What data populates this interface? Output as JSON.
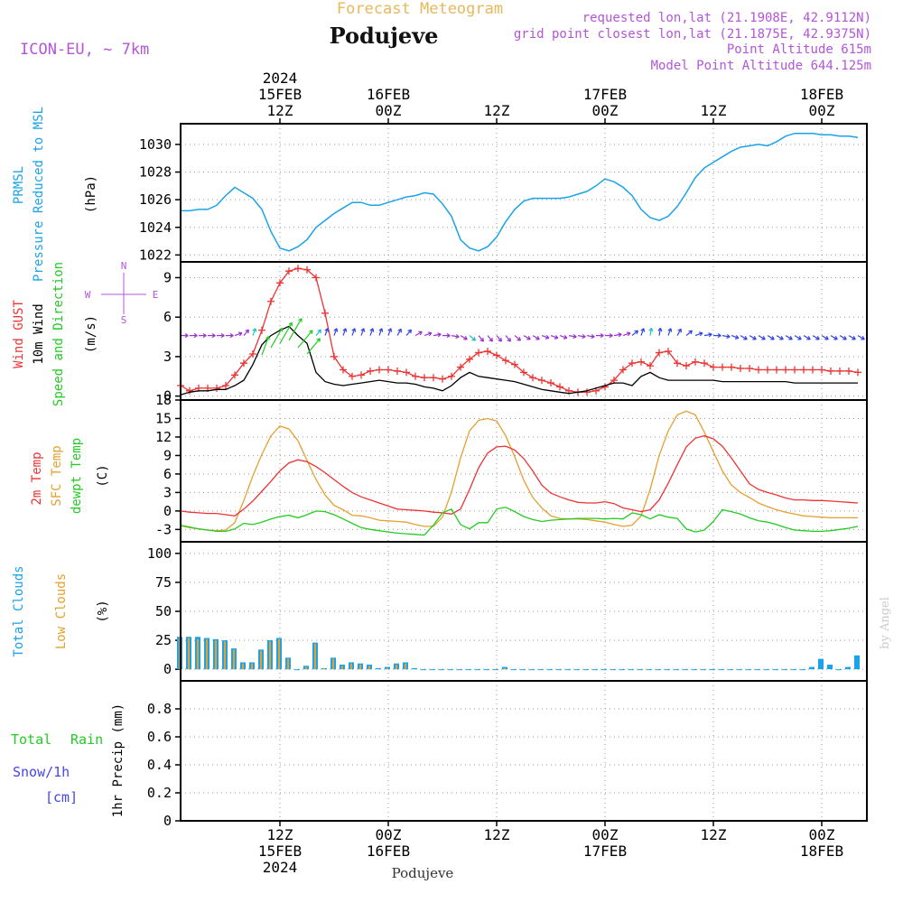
{
  "header": {
    "title": "Forecast Meteogram",
    "location": "Podujeve",
    "model": "ICON-EU, ~ 7km",
    "requested": "requested lon,lat (21.1908E, 42.9112N)",
    "grid_point": "grid point closest lon,lat (21.1875E, 42.9375N)",
    "point_altitude": "Point Altitude 615m",
    "model_altitude": "Model Point Altitude 644.125m",
    "credit": "by Angel",
    "footer_location": "Podujeve"
  },
  "time_axis": {
    "top": [
      {
        "t": 12,
        "lines": [
          "2024",
          "15FEB",
          "12Z"
        ]
      },
      {
        "t": 24,
        "lines": [
          "16FEB",
          "00Z"
        ]
      },
      {
        "t": 36,
        "lines": [
          "12Z"
        ]
      },
      {
        "t": 48,
        "lines": [
          "17FEB",
          "00Z"
        ]
      },
      {
        "t": 60,
        "lines": [
          "12Z"
        ]
      },
      {
        "t": 72,
        "lines": [
          "18FEB",
          "00Z"
        ]
      }
    ],
    "bottom": [
      {
        "t": 12,
        "lines": [
          "12Z",
          "15FEB",
          "2024"
        ]
      },
      {
        "t": 24,
        "lines": [
          "00Z",
          "16FEB"
        ]
      },
      {
        "t": 36,
        "lines": [
          "12Z"
        ]
      },
      {
        "t": 48,
        "lines": [
          "00Z",
          "17FEB"
        ]
      },
      {
        "t": 60,
        "lines": [
          "12Z"
        ]
      },
      {
        "t": 72,
        "lines": [
          "00Z",
          "18FEB"
        ]
      }
    ]
  },
  "colors": {
    "pressure": "#1aa3e8",
    "gust": "#ee3333",
    "wind": "#000000",
    "temp2m": "#ee3333",
    "sfc": "#e5a030",
    "dewpt": "#22cc22",
    "total_clouds": "#1aa3e8",
    "low_clouds": "#e5a030",
    "rain": "#22cc22",
    "snow": "#4444ee",
    "header_purple": "#b455d8",
    "title_orange": "#e8b85a"
  },
  "chart_data": [
    {
      "type": "line",
      "name": "pressure",
      "labels": [
        "PRMSL",
        "Pressure Reduced to MSL"
      ],
      "unit": "(hPa)",
      "yticks": [
        "1022",
        "1024",
        "1026",
        "1028",
        "1030"
      ],
      "ylim": [
        1021.5,
        1031.5
      ],
      "t_range": [
        1,
        77
      ],
      "x": [
        1,
        2,
        3,
        4,
        5,
        6,
        7,
        8,
        9,
        10,
        11,
        12,
        13,
        14,
        15,
        16,
        17,
        18,
        19,
        20,
        21,
        22,
        23,
        24,
        25,
        26,
        27,
        28,
        29,
        30,
        31,
        32,
        33,
        34,
        35,
        36,
        37,
        38,
        39,
        40,
        41,
        42,
        43,
        44,
        45,
        46,
        47,
        48,
        49,
        50,
        51,
        52,
        53,
        54,
        55,
        56,
        57,
        58,
        59,
        60,
        61,
        62,
        63,
        64,
        65,
        66,
        67,
        68,
        69,
        70,
        71,
        72,
        73,
        74,
        75,
        76
      ],
      "values": [
        1025.2,
        1025.2,
        1025.3,
        1025.3,
        1025.6,
        1026.3,
        1026.9,
        1026.5,
        1026.1,
        1025.3,
        1023.7,
        1022.5,
        1022.3,
        1022.6,
        1023.1,
        1024.0,
        1024.5,
        1025.0,
        1025.4,
        1025.8,
        1025.8,
        1025.6,
        1025.6,
        1025.8,
        1026.0,
        1026.2,
        1026.3,
        1026.5,
        1026.4,
        1025.7,
        1024.8,
        1023.1,
        1022.5,
        1022.3,
        1022.6,
        1023.3,
        1024.4,
        1025.3,
        1025.9,
        1026.1,
        1026.1,
        1026.1,
        1026.1,
        1026.2,
        1026.4,
        1026.6,
        1027.0,
        1027.5,
        1027.3,
        1026.9,
        1026.3,
        1025.3,
        1024.7,
        1024.5,
        1024.8,
        1025.5,
        1026.5,
        1027.6,
        1028.3,
        1028.7,
        1029.1,
        1029.5,
        1029.8,
        1029.9,
        1030.0,
        1029.9,
        1030.2,
        1030.6,
        1030.8,
        1030.8,
        1030.8,
        1030.7,
        1030.7,
        1030.6,
        1030.6,
        1030.5
      ]
    },
    {
      "type": "line",
      "name": "wind",
      "labels": [
        "Wind GUST",
        "10m Wind",
        "Speed and Direction"
      ],
      "unit": "(m/s)",
      "yticks": [
        "0",
        "3",
        "6",
        "9"
      ],
      "ylim": [
        -0.3,
        10.2
      ],
      "compass": [
        "N",
        "W",
        "E",
        "S"
      ],
      "gust_values": [
        0.8,
        0.4,
        0.6,
        0.6,
        0.6,
        0.8,
        1.6,
        2.5,
        3.2,
        5.0,
        7.2,
        8.6,
        9.5,
        9.7,
        9.6,
        9.0,
        6.3,
        3.0,
        2.0,
        1.5,
        1.6,
        1.9,
        2.0,
        2.0,
        1.9,
        1.8,
        1.5,
        1.4,
        1.4,
        1.3,
        1.5,
        2.2,
        2.8,
        3.3,
        3.4,
        3.1,
        2.7,
        2.4,
        1.8,
        1.4,
        1.2,
        1.0,
        0.7,
        0.4,
        0.3,
        0.3,
        0.4,
        0.7,
        1.2,
        2.0,
        2.5,
        2.6,
        2.3,
        3.3,
        3.4,
        2.5,
        2.3,
        2.6,
        2.5,
        2.2,
        2.2,
        2.2,
        2.1,
        2.1,
        2.0,
        2.0,
        2.0,
        2.0,
        2.0,
        2.0,
        2.0,
        2.0,
        1.9,
        1.9,
        1.9,
        1.8
      ],
      "wind_values": [
        0.1,
        0.3,
        0.4,
        0.4,
        0.5,
        0.5,
        0.8,
        1.2,
        2.4,
        3.9,
        4.6,
        5.0,
        5.3,
        4.6,
        4.0,
        1.8,
        1.1,
        0.9,
        0.8,
        0.9,
        1.0,
        1.1,
        1.2,
        1.1,
        1.0,
        1.0,
        0.9,
        0.7,
        0.6,
        0.4,
        0.8,
        1.4,
        1.8,
        1.5,
        1.4,
        1.3,
        1.2,
        1.1,
        0.9,
        0.7,
        0.5,
        0.4,
        0.3,
        0.2,
        0.3,
        0.4,
        0.6,
        0.8,
        1.0,
        1.0,
        0.8,
        1.5,
        1.8,
        1.4,
        1.2,
        1.2,
        1.2,
        1.2,
        1.2,
        1.2,
        1.1,
        1.1,
        1.1,
        1.1,
        1.1,
        1.1,
        1.1,
        1.1,
        1.0,
        1.0,
        1.0,
        1.0,
        1.0,
        1.0,
        1.0,
        1.0
      ],
      "barb_dir_deg": [
        270,
        270,
        270,
        270,
        270,
        270,
        250,
        220,
        200,
        200,
        210,
        210,
        210,
        220,
        220,
        220,
        200,
        200,
        200,
        200,
        200,
        200,
        200,
        200,
        210,
        220,
        240,
        250,
        260,
        270,
        280,
        300,
        310,
        320,
        320,
        320,
        320,
        310,
        300,
        300,
        290,
        290,
        290,
        280,
        280,
        280,
        270,
        270,
        260,
        250,
        230,
        200,
        190,
        190,
        200,
        210,
        230,
        250,
        260,
        270,
        280,
        290,
        300,
        300,
        300,
        300,
        300,
        300,
        300,
        300,
        300,
        300,
        300,
        300,
        300,
        300
      ]
    },
    {
      "type": "line",
      "name": "temperature",
      "labels": [
        "2m Temp",
        "SFC Temp",
        "dewpt Temp"
      ],
      "unit": "(C)",
      "yticks": [
        "-3",
        "0",
        "3",
        "6",
        "9",
        "12",
        "15",
        "18"
      ],
      "ylim": [
        -5,
        18
      ],
      "temp2m": [
        0.0,
        -0.2,
        -0.3,
        -0.4,
        -0.4,
        -0.6,
        -0.8,
        0.3,
        1.6,
        3.2,
        4.8,
        6.5,
        7.8,
        8.3,
        8.0,
        7.2,
        6.2,
        5.1,
        4.0,
        3.0,
        2.3,
        1.8,
        1.3,
        0.8,
        0.3,
        0.2,
        0.1,
        0.0,
        -0.2,
        -0.3,
        -0.5,
        0.3,
        3.5,
        7.0,
        9.4,
        10.4,
        10.5,
        9.9,
        8.5,
        6.5,
        4.2,
        2.9,
        2.3,
        1.8,
        1.4,
        1.3,
        1.3,
        1.5,
        1.2,
        0.5,
        0.2,
        -0.1,
        0.2,
        1.8,
        4.5,
        7.5,
        10.4,
        11.8,
        12.2,
        11.7,
        10.5,
        8.6,
        6.5,
        4.4,
        3.5,
        3.0,
        2.6,
        2.1,
        1.8,
        1.8,
        1.7,
        1.7,
        1.6,
        1.5,
        1.4,
        1.3
      ],
      "sfc": [
        -2.4,
        -2.7,
        -2.9,
        -3.1,
        -3.2,
        -3.1,
        -1.9,
        1.7,
        5.7,
        9.2,
        12.2,
        13.8,
        13.3,
        11.4,
        8.2,
        5.1,
        2.6,
        0.9,
        0.2,
        -0.7,
        -0.8,
        -1.1,
        -1.5,
        -1.6,
        -1.7,
        -1.8,
        -2.2,
        -2.5,
        -2.5,
        -1.0,
        3.1,
        8.6,
        13.0,
        14.7,
        15.0,
        14.6,
        12.2,
        8.8,
        5.0,
        2.2,
        0.5,
        -0.8,
        -1.2,
        -1.3,
        -1.3,
        -1.4,
        -1.6,
        -1.8,
        -2.2,
        -2.5,
        -2.3,
        -0.8,
        3.5,
        9.0,
        13.0,
        15.6,
        16.2,
        15.6,
        12.8,
        9.6,
        6.5,
        4.2,
        3.0,
        2.2,
        1.3,
        0.7,
        0.2,
        -0.2,
        -0.5,
        -0.8,
        -0.9,
        -1.0,
        -1.1,
        -1.1,
        -1.1,
        -1.1
      ],
      "dewpt": [
        -2.3,
        -2.6,
        -2.9,
        -3.1,
        -3.3,
        -3.3,
        -2.9,
        -2.0,
        -2.2,
        -1.8,
        -1.3,
        -0.9,
        -0.7,
        -1.1,
        -0.6,
        0.0,
        -0.1,
        -0.6,
        -1.3,
        -2.0,
        -2.7,
        -3.0,
        -3.2,
        -3.4,
        -3.6,
        -3.7,
        -3.8,
        -3.9,
        -2.3,
        -0.3,
        0.3,
        -2.2,
        -2.9,
        -1.9,
        -1.9,
        0.3,
        0.6,
        -0.1,
        -0.9,
        -1.4,
        -1.7,
        -1.5,
        -1.4,
        -1.3,
        -1.2,
        -1.2,
        -1.2,
        -1.3,
        -1.2,
        -1.3,
        -0.3,
        -0.6,
        -1.3,
        -0.6,
        -1.0,
        -1.2,
        -2.9,
        -3.4,
        -3.1,
        -1.7,
        0.2,
        -0.1,
        -0.5,
        -1.1,
        -1.6,
        -1.8,
        -2.2,
        -2.7,
        -3.1,
        -3.2,
        -3.3,
        -3.3,
        -3.2,
        -3.0,
        -2.8,
        -2.5
      ]
    },
    {
      "type": "bar",
      "name": "clouds",
      "labels": [
        "Total Clouds",
        "Low Clouds"
      ],
      "unit": "(%)",
      "yticks": [
        "0",
        "25",
        "50",
        "75",
        "100"
      ],
      "ylim": [
        -10,
        110
      ],
      "total": [
        28,
        28,
        28,
        27,
        26,
        25,
        18,
        6,
        6,
        17,
        25,
        27,
        10,
        0,
        3,
        23,
        1,
        10,
        4,
        6,
        5,
        4,
        1,
        2,
        5,
        6,
        1,
        0,
        0,
        0,
        0,
        0,
        0,
        0,
        0,
        0,
        2,
        0,
        0,
        0,
        0,
        0,
        0,
        0,
        0,
        0,
        0,
        0,
        0,
        0,
        0,
        0,
        0,
        0,
        0,
        0,
        0,
        0,
        0,
        0,
        0,
        0,
        0,
        0,
        0,
        0,
        0,
        0,
        0,
        0,
        2,
        9,
        4,
        0,
        2,
        12
      ],
      "low": [
        27,
        27,
        26,
        26,
        25,
        24,
        17,
        5,
        5,
        16,
        24,
        26,
        9,
        0,
        2,
        22,
        1,
        9,
        3,
        5,
        4,
        3,
        0,
        1,
        4,
        5,
        0,
        0,
        0,
        0,
        0,
        0,
        0,
        0,
        0,
        0,
        1,
        0,
        0,
        0,
        0,
        0,
        0,
        0,
        0,
        0,
        0,
        0,
        0,
        0,
        0,
        0,
        0,
        0,
        0,
        0,
        0,
        0,
        0,
        0,
        0,
        0,
        0,
        0,
        0,
        0,
        0,
        0,
        0,
        0,
        0,
        0,
        0,
        0,
        0,
        0
      ]
    },
    {
      "type": "bar",
      "name": "precip",
      "labels": [
        "Total",
        "Rain",
        "Snow/1h",
        "[cm]"
      ],
      "unit": "1hr Precip (mm)",
      "yticks": [
        "0",
        "0.2",
        "0.4",
        "0.6",
        "0.8"
      ],
      "ylim": [
        0,
        1.0
      ],
      "rain": [],
      "snow": []
    }
  ]
}
